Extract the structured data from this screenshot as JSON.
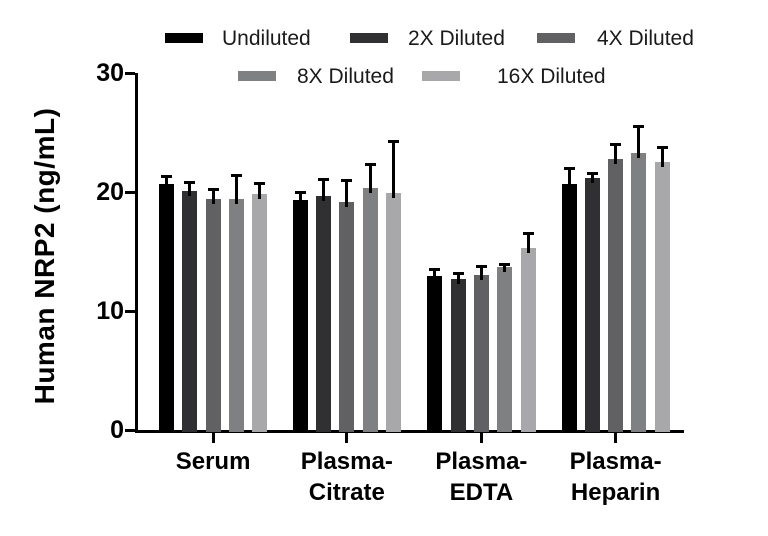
{
  "chart_data": {
    "type": "bar",
    "title": "",
    "ylabel": "Human NRP2 (ng/mL)",
    "xlabel": "",
    "ylim": [
      0,
      30
    ],
    "yticks": [
      0,
      10,
      20,
      30
    ],
    "grid": false,
    "error_bars": true,
    "legend_position": "top",
    "categories": [
      "Serum",
      "Plasma-Citrate",
      "Plasma-EDTA",
      "Plasma-Heparin"
    ],
    "category_display_lines": [
      [
        "Serum"
      ],
      [
        "Plasma-",
        "Citrate"
      ],
      [
        "Plasma-",
        "EDTA"
      ],
      [
        "Plasma-",
        "Heparin"
      ]
    ],
    "series": [
      {
        "name": "Undiluted",
        "color": "#000000",
        "values": [
          20.7,
          19.3,
          12.9,
          20.7
        ],
        "errors": [
          0.7,
          0.8,
          0.7,
          1.4
        ]
      },
      {
        "name": "2X Diluted",
        "color": "#303032",
        "values": [
          20.1,
          19.7,
          12.7,
          21.2
        ],
        "errors": [
          0.8,
          1.5,
          0.6,
          0.5
        ]
      },
      {
        "name": "4X Diluted",
        "color": "#616163",
        "values": [
          19.4,
          19.2,
          13.0,
          22.8
        ],
        "errors": [
          0.9,
          1.9,
          0.9,
          1.3
        ]
      },
      {
        "name": "8X Diluted",
        "color": "#7f8082",
        "values": [
          19.4,
          20.3,
          13.7,
          23.3
        ],
        "errors": [
          2.1,
          2.1,
          0.3,
          2.3
        ]
      },
      {
        "name": "16X Diluted",
        "color": "#a8a8ab",
        "values": [
          19.8,
          19.9,
          15.3,
          22.5
        ],
        "errors": [
          1.0,
          4.5,
          1.3,
          1.4
        ]
      }
    ]
  },
  "colors": {
    "axis": "#000000",
    "background": "#ffffff",
    "text": "#000000"
  }
}
